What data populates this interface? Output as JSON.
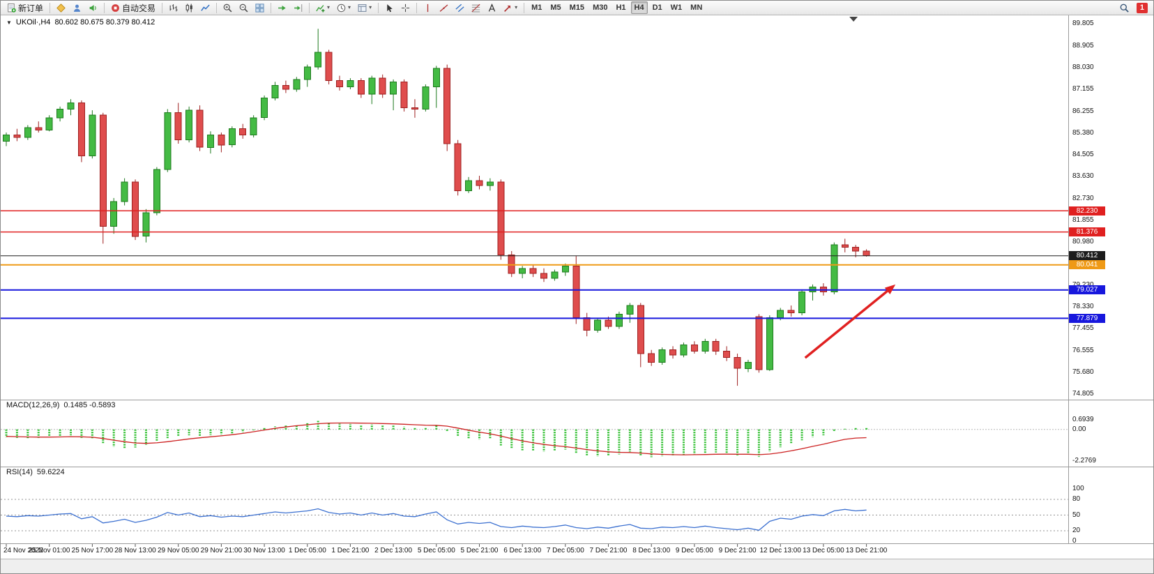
{
  "glyphs": {
    "title_caret": "▼",
    "dropdown_caret": "▾"
  },
  "toolbar": {
    "new_order_label": "新订单",
    "auto_trading_label": "自动交易",
    "groups": [
      [
        "new-order"
      ],
      [
        "metaeditor",
        "market-watch",
        "sounds"
      ],
      [
        "auto-trading"
      ],
      [
        "chart-bars",
        "chart-candles",
        "chart-line"
      ],
      [
        "zoom-in",
        "zoom-out",
        "tile-windows"
      ],
      [
        "auto-scroll",
        "chart-shift"
      ],
      [
        "indicators",
        "periods",
        "templates"
      ],
      [
        "cursor",
        "crosshair"
      ],
      [
        "vertical-line",
        "trendline",
        "channel",
        "fibonacci",
        "text",
        "arrows"
      ]
    ],
    "dropdown_items": [
      "indicators",
      "periods",
      "templates",
      "arrows"
    ],
    "timeframes": [
      "M1",
      "M5",
      "M15",
      "M30",
      "H1",
      "H4",
      "D1",
      "W1",
      "MN"
    ],
    "active_timeframe": "H4",
    "notification_count": "1"
  },
  "chart_data": {
    "type": "candlestick",
    "symbol": "UKOil",
    "timeframe": "H4",
    "symbol_label": "UKOil·,H4",
    "ohlc_label": "80.602 80.675 80.379 80.412",
    "bull_color": "#44bb44",
    "bull_border": "#1d7a1d",
    "bear_color": "#df4d4d",
    "bear_border": "#9e1f1f",
    "y_axis_labels": [
      "89.805",
      "88.905",
      "88.030",
      "87.155",
      "86.255",
      "85.380",
      "84.505",
      "83.630",
      "82.730",
      "81.855",
      "80.980",
      "80.105",
      "79.230",
      "78.330",
      "77.455",
      "76.555",
      "75.680",
      "74.805"
    ],
    "x_labels": [
      "24 Nov 2022",
      "25 Nov 01:00",
      "25 Nov 17:00",
      "28 Nov 13:00",
      "29 Nov 05:00",
      "29 Nov 21:00",
      "30 Nov 13:00",
      "1 Dec 05:00",
      "1 Dec 21:00",
      "2 Dec 13:00",
      "5 Dec 05:00",
      "5 Dec 21:00",
      "6 Dec 13:00",
      "7 Dec 05:00",
      "7 Dec 21:00",
      "8 Dec 13:00",
      "9 Dec 05:00",
      "9 Dec 21:00",
      "12 Dec 13:00",
      "13 Dec 05:00",
      "13 Dec 21:00"
    ],
    "candles_ohlc": [
      [
        85.05,
        85.4,
        84.85,
        85.3
      ],
      [
        85.3,
        85.55,
        85.05,
        85.2
      ],
      [
        85.2,
        85.7,
        85.1,
        85.6
      ],
      [
        85.6,
        85.85,
        85.4,
        85.5
      ],
      [
        85.5,
        86.1,
        85.45,
        86.0
      ],
      [
        86.0,
        86.45,
        85.85,
        86.35
      ],
      [
        86.35,
        86.75,
        86.1,
        86.6
      ],
      [
        86.6,
        86.7,
        84.2,
        84.45
      ],
      [
        84.45,
        86.3,
        84.35,
        86.1
      ],
      [
        86.1,
        86.2,
        80.9,
        81.6
      ],
      [
        81.6,
        82.75,
        81.3,
        82.6
      ],
      [
        82.6,
        83.55,
        82.45,
        83.4
      ],
      [
        83.4,
        83.5,
        81.05,
        81.2
      ],
      [
        81.2,
        82.3,
        80.95,
        82.15
      ],
      [
        82.15,
        84.0,
        82.05,
        83.9
      ],
      [
        83.9,
        86.35,
        83.8,
        86.2
      ],
      [
        86.2,
        86.6,
        84.95,
        85.1
      ],
      [
        85.1,
        86.45,
        85.0,
        86.3
      ],
      [
        86.3,
        86.5,
        84.65,
        84.8
      ],
      [
        84.8,
        85.45,
        84.55,
        85.3
      ],
      [
        85.3,
        85.4,
        84.6,
        84.9
      ],
      [
        84.9,
        85.65,
        84.8,
        85.55
      ],
      [
        85.55,
        85.75,
        85.15,
        85.3
      ],
      [
        85.3,
        86.1,
        85.2,
        86.0
      ],
      [
        86.0,
        86.9,
        85.9,
        86.8
      ],
      [
        86.8,
        87.45,
        86.7,
        87.3
      ],
      [
        87.3,
        87.5,
        87.0,
        87.15
      ],
      [
        87.15,
        87.65,
        87.05,
        87.55
      ],
      [
        87.55,
        88.15,
        87.25,
        88.05
      ],
      [
        88.05,
        89.6,
        87.95,
        88.65
      ],
      [
        88.65,
        88.75,
        87.35,
        87.5
      ],
      [
        87.5,
        87.7,
        87.1,
        87.25
      ],
      [
        87.25,
        87.6,
        87.15,
        87.5
      ],
      [
        87.5,
        87.6,
        86.8,
        86.95
      ],
      [
        86.95,
        87.7,
        86.55,
        87.6
      ],
      [
        87.6,
        87.75,
        86.8,
        86.95
      ],
      [
        86.95,
        87.55,
        86.3,
        87.45
      ],
      [
        87.45,
        87.55,
        86.25,
        86.4
      ],
      [
        86.4,
        86.75,
        86.0,
        86.35
      ],
      [
        86.35,
        87.35,
        86.25,
        87.25
      ],
      [
        87.25,
        88.1,
        86.4,
        88.0
      ],
      [
        88.0,
        88.15,
        84.65,
        84.95
      ],
      [
        84.95,
        85.1,
        82.85,
        83.05
      ],
      [
        83.05,
        83.6,
        82.95,
        83.45
      ],
      [
        83.45,
        83.65,
        83.1,
        83.25
      ],
      [
        83.25,
        83.55,
        83.05,
        83.4
      ],
      [
        83.4,
        83.5,
        80.25,
        80.45
      ],
      [
        80.45,
        80.6,
        79.55,
        79.7
      ],
      [
        79.7,
        80.0,
        79.5,
        79.9
      ],
      [
        79.9,
        80.05,
        79.55,
        79.7
      ],
      [
        79.7,
        79.9,
        79.35,
        79.5
      ],
      [
        79.5,
        79.85,
        79.4,
        79.75
      ],
      [
        79.75,
        80.1,
        79.6,
        80.0
      ],
      [
        80.0,
        80.4,
        77.65,
        77.9
      ],
      [
        77.9,
        78.1,
        77.15,
        77.4
      ],
      [
        77.4,
        77.9,
        77.3,
        77.8
      ],
      [
        77.8,
        77.95,
        77.45,
        77.55
      ],
      [
        77.55,
        78.15,
        77.45,
        78.05
      ],
      [
        78.05,
        78.5,
        77.7,
        78.4
      ],
      [
        78.4,
        78.5,
        75.9,
        76.45
      ],
      [
        76.45,
        76.6,
        75.95,
        76.1
      ],
      [
        76.1,
        76.7,
        76.0,
        76.6
      ],
      [
        76.6,
        76.75,
        76.25,
        76.4
      ],
      [
        76.4,
        76.9,
        76.3,
        76.8
      ],
      [
        76.8,
        76.95,
        76.45,
        76.55
      ],
      [
        76.55,
        77.05,
        76.45,
        76.95
      ],
      [
        76.95,
        77.05,
        76.4,
        76.55
      ],
      [
        76.55,
        76.75,
        76.15,
        76.3
      ],
      [
        76.3,
        76.45,
        75.15,
        75.85
      ],
      [
        75.85,
        76.2,
        75.7,
        76.1
      ],
      [
        77.95,
        78.05,
        75.68,
        75.8
      ],
      [
        75.8,
        78.0,
        75.75,
        77.9
      ],
      [
        77.9,
        78.3,
        77.8,
        78.2
      ],
      [
        78.2,
        78.4,
        77.95,
        78.1
      ],
      [
        78.1,
        79.05,
        78.0,
        78.95
      ],
      [
        78.95,
        79.25,
        78.6,
        79.15
      ],
      [
        79.15,
        79.3,
        78.8,
        78.95
      ],
      [
        78.95,
        80.95,
        78.85,
        80.85
      ],
      [
        80.85,
        81.1,
        80.55,
        80.75
      ],
      [
        80.75,
        80.85,
        80.35,
        80.6
      ],
      [
        80.602,
        80.675,
        80.379,
        80.412
      ]
    ],
    "price_lines": [
      {
        "price": 82.23,
        "label": "82.230",
        "color": "#e02020",
        "width": 1.5
      },
      {
        "price": 81.376,
        "label": "81.376",
        "color": "#e02020",
        "width": 1.5
      },
      {
        "price": 80.412,
        "label": "80.412",
        "color": "#1c1c1c",
        "width": 1
      },
      {
        "price": 80.041,
        "label": "80.041",
        "color": "#ef9a16",
        "width": 2
      },
      {
        "price": 79.027,
        "label": "79.027",
        "color": "#1717dd",
        "width": 2
      },
      {
        "price": 77.879,
        "label": "77.879",
        "color": "#1717dd",
        "width": 2
      }
    ],
    "arrow": {
      "from": {
        "index": 74.3,
        "price": 76.28
      },
      "to": {
        "index": 82.7,
        "price": 79.25
      },
      "color": "#e02020"
    },
    "scroll_marker_index": 78.8,
    "macd": {
      "label_name": "MACD(12,26,9)",
      "label_values": "0.1485 -0.5893",
      "histogram_color": "#2fbf2f",
      "signal_color": "#cc2020",
      "scale": [
        {
          "label": "0.6939",
          "value": 0.6939
        },
        {
          "label": "0.00",
          "value": 0
        },
        {
          "label": "-2.2769",
          "value": -2.2769
        }
      ],
      "histogram": [
        -0.55,
        -0.6,
        -0.62,
        -0.6,
        -0.55,
        -0.48,
        -0.42,
        -0.6,
        -0.7,
        -1.05,
        -1.25,
        -1.35,
        -1.3,
        -1.1,
        -0.8,
        -0.62,
        -0.5,
        -0.42,
        -0.45,
        -0.4,
        -0.38,
        -0.3,
        -0.2,
        -0.05,
        0.12,
        0.22,
        0.28,
        0.35,
        0.45,
        0.62,
        0.52,
        0.42,
        0.4,
        0.32,
        0.38,
        0.28,
        0.32,
        0.2,
        0.1,
        0.18,
        0.35,
        -0.1,
        -0.5,
        -0.65,
        -0.72,
        -0.7,
        -1.15,
        -1.4,
        -1.5,
        -1.55,
        -1.6,
        -1.55,
        -1.45,
        -1.7,
        -1.9,
        -1.95,
        -1.9,
        -1.8,
        -1.62,
        -1.9,
        -2.0,
        -1.95,
        -1.9,
        -1.82,
        -1.78,
        -1.7,
        -1.66,
        -1.72,
        -1.88,
        -1.8,
        -1.98,
        -1.6,
        -1.28,
        -1.05,
        -0.78,
        -0.55,
        -0.42,
        -0.1,
        0.05,
        0.1,
        0.1485
      ],
      "signal": [
        -0.5,
        -0.52,
        -0.54,
        -0.55,
        -0.55,
        -0.54,
        -0.52,
        -0.53,
        -0.56,
        -0.65,
        -0.77,
        -0.88,
        -0.97,
        -1.0,
        -0.96,
        -0.88,
        -0.78,
        -0.68,
        -0.6,
        -0.53,
        -0.46,
        -0.38,
        -0.28,
        -0.16,
        -0.04,
        0.08,
        0.18,
        0.27,
        0.34,
        0.42,
        0.46,
        0.47,
        0.47,
        0.46,
        0.45,
        0.43,
        0.41,
        0.38,
        0.34,
        0.31,
        0.3,
        0.24,
        0.1,
        -0.05,
        -0.19,
        -0.31,
        -0.48,
        -0.66,
        -0.82,
        -0.96,
        -1.08,
        -1.17,
        -1.24,
        -1.34,
        -1.45,
        -1.54,
        -1.61,
        -1.65,
        -1.66,
        -1.7,
        -1.76,
        -1.8,
        -1.82,
        -1.83,
        -1.82,
        -1.81,
        -1.79,
        -1.78,
        -1.79,
        -1.79,
        -1.82,
        -1.77,
        -1.67,
        -1.54,
        -1.39,
        -1.22,
        -1.06,
        -0.88,
        -0.71,
        -0.62,
        -0.5893
      ]
    },
    "rsi": {
      "label_name": "RSI(14)",
      "label_value": "59.6224",
      "line_color": "#3a6fd0",
      "levels": [
        80,
        50,
        20
      ],
      "scale": [
        {
          "label": "100",
          "value": 100
        },
        {
          "label": "80",
          "value": 80
        },
        {
          "label": "50",
          "value": 50
        },
        {
          "label": "20",
          "value": 20
        },
        {
          "label": "0",
          "value": 0
        }
      ],
      "values": [
        48,
        47,
        49,
        48,
        50,
        52,
        53,
        43,
        47,
        35,
        38,
        42,
        36,
        40,
        46,
        55,
        50,
        54,
        47,
        49,
        46,
        48,
        47,
        50,
        53,
        56,
        54,
        56,
        58,
        62,
        55,
        52,
        54,
        50,
        54,
        50,
        53,
        48,
        47,
        52,
        56,
        41,
        33,
        36,
        34,
        36,
        28,
        26,
        29,
        27,
        26,
        28,
        31,
        26,
        24,
        27,
        25,
        29,
        32,
        25,
        24,
        27,
        26,
        28,
        26,
        29,
        26,
        24,
        22,
        25,
        21,
        38,
        44,
        42,
        48,
        51,
        49,
        58,
        61,
        58,
        59.62
      ]
    }
  }
}
